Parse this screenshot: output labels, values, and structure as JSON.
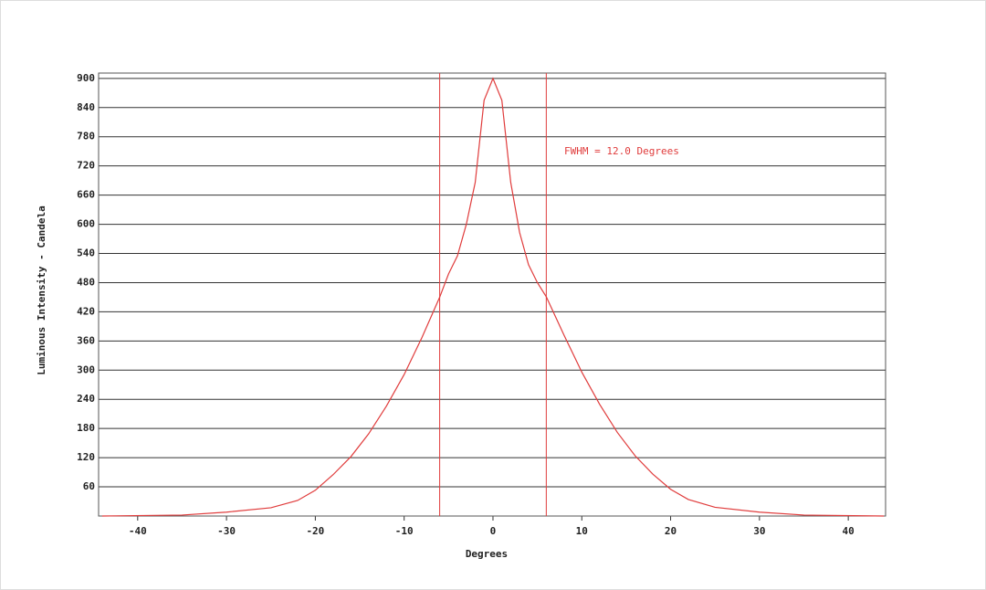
{
  "chart_data": {
    "type": "line",
    "x_label": "Degrees",
    "y_label": "Luminous Intensity - Candela",
    "annotation": "FWHM = 12.0 Degrees",
    "x": [
      -44,
      -35,
      -30,
      -25,
      -22,
      -20,
      -18,
      -16,
      -14,
      -12,
      -10,
      -8,
      -6,
      -5,
      -4,
      -3,
      -2,
      -1,
      0,
      1,
      2,
      3,
      4,
      5,
      6,
      8,
      10,
      12,
      14,
      16,
      18,
      20,
      22,
      25,
      30,
      35,
      44
    ],
    "series": [
      {
        "name": "Luminous Intensity",
        "color": "#e03c3c",
        "values": [
          0,
          2,
          8,
          17,
          32,
          53,
          85,
          122,
          169,
          226,
          291,
          367,
          450,
          498,
          535,
          600,
          686,
          855,
          900,
          855,
          686,
          583,
          517,
          480,
          451,
          372,
          296,
          230,
          172,
          124,
          86,
          55,
          34,
          18,
          8,
          2,
          0
        ]
      }
    ],
    "vlines": [
      -6,
      6
    ],
    "vline_color": "#e03c3c",
    "xlim": [
      -44.4,
      44.2
    ],
    "ylim": [
      0,
      911
    ],
    "xticks": [
      -40,
      -30,
      -20,
      -10,
      0,
      10,
      20,
      30,
      40
    ],
    "yticks": [
      60,
      120,
      180,
      240,
      300,
      360,
      420,
      480,
      540,
      600,
      660,
      720,
      780,
      840,
      900
    ],
    "grid": true
  }
}
